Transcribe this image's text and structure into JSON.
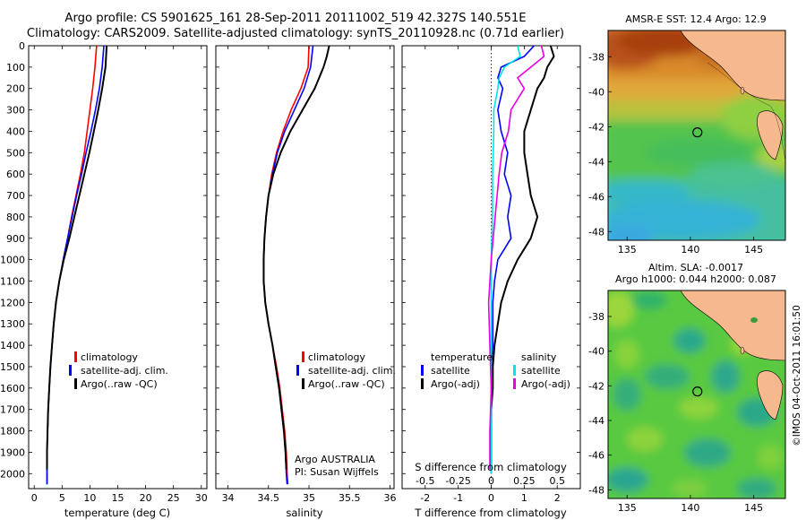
{
  "header": {
    "line1": "Argo profile: CS 5901625_161 28-Sep-2011 20111002_519 42.327S 140.551E",
    "line2": "Climatology: CARS2009. Satellite-adjusted climatology: synTS_20110928.nc (0.71d earlier)"
  },
  "sst_map": {
    "title": "AMSR-E SST: 12.4 Argo: 12.9"
  },
  "sla_map": {
    "title_line1": "Altim. SLA: -0.0017",
    "title_line2": "Argo h1000: 0.044 h2000: 0.087"
  },
  "side_stamp": "©IMOS 04-Oct-2011 16:01:50",
  "colors": {
    "climatology": "#ff0000",
    "satellite": "#0000ff",
    "argo": "#000000",
    "s_satellite": "#00e5e5",
    "s_argo": "#e600e6",
    "land": "#f6b98e"
  },
  "chart_data": [
    {
      "type": "line",
      "id": "temperature_profile",
      "xlabel": "temperature (deg C)",
      "xlim": [
        -1,
        31
      ],
      "xticks": [
        0,
        5,
        10,
        15,
        20,
        25,
        30
      ],
      "ylim": [
        2070,
        0
      ],
      "yticks": [
        0,
        100,
        200,
        300,
        400,
        500,
        600,
        700,
        800,
        900,
        1000,
        1100,
        1200,
        1300,
        1400,
        1500,
        1600,
        1700,
        1800,
        1900,
        2000
      ],
      "legend": {
        "placement": "lower-middle",
        "entries": [
          "climatology",
          "satellite-adj. clim.",
          "Argo(..raw -QC)"
        ]
      },
      "series": [
        {
          "name": "climatology",
          "color_key": "climatology",
          "depth": [
            0,
            100,
            200,
            300,
            400,
            500,
            600,
            700,
            800,
            900,
            1000,
            1100,
            1200,
            1300,
            1400,
            1500,
            1600,
            1700,
            1800,
            1900,
            2000,
            2050
          ],
          "values": [
            11.2,
            10.9,
            10.5,
            10.0,
            9.5,
            9.0,
            8.3,
            7.5,
            6.7,
            6.0,
            5.2,
            4.5,
            3.9,
            3.5,
            3.2,
            2.9,
            2.7,
            2.5,
            2.4,
            2.3,
            2.3,
            2.3
          ]
        },
        {
          "name": "satellite-adj. clim.",
          "color_key": "satellite",
          "depth": [
            0,
            100,
            200,
            300,
            400,
            500,
            600,
            700,
            800,
            900,
            1000,
            1100,
            1200,
            1300,
            1400,
            1500,
            1600,
            1700,
            1800,
            1900,
            2000,
            2050
          ],
          "values": [
            12.5,
            12.2,
            11.7,
            11.0,
            10.2,
            9.3,
            8.5,
            7.6,
            6.8,
            6.0,
            5.2,
            4.5,
            3.9,
            3.5,
            3.2,
            2.9,
            2.7,
            2.5,
            2.4,
            2.3,
            2.3,
            2.3
          ]
        },
        {
          "name": "Argo(..raw -QC)",
          "color_key": "argo",
          "depth": [
            0,
            100,
            200,
            300,
            400,
            500,
            600,
            700,
            800,
            900,
            1000,
            1100,
            1200,
            1300,
            1400,
            1500,
            1600,
            1700,
            1800,
            1900,
            1980
          ],
          "values": [
            13.0,
            12.8,
            12.2,
            11.5,
            10.7,
            9.9,
            9.0,
            8.1,
            7.2,
            6.3,
            5.3,
            4.5,
            3.9,
            3.5,
            3.2,
            2.9,
            2.7,
            2.5,
            2.4,
            2.3,
            2.3
          ]
        }
      ]
    },
    {
      "type": "line",
      "id": "salinity_profile",
      "xlabel": "salinity",
      "xlim": [
        33.85,
        36.05
      ],
      "xticks": [
        34,
        34.5,
        35,
        35.5,
        36
      ],
      "ylim": [
        2070,
        0
      ],
      "legend": {
        "placement": "lower-middle",
        "entries": [
          "climatology",
          "satellite-adj. clim.",
          "Argo(..raw -QC)"
        ]
      },
      "annotation": [
        "Argo AUSTRALIA",
        "PI: Susan Wijffels"
      ],
      "series": [
        {
          "name": "climatology",
          "color_key": "climatology",
          "depth": [
            0,
            100,
            200,
            300,
            400,
            500,
            600,
            700,
            800,
            900,
            1000,
            1100,
            1200,
            1300,
            1400,
            1500,
            1600,
            1700,
            1800,
            1900,
            2000,
            2050
          ],
          "values": [
            35.0,
            34.99,
            34.9,
            34.78,
            34.68,
            34.6,
            34.54,
            34.5,
            34.47,
            34.45,
            34.44,
            34.44,
            34.46,
            34.5,
            34.55,
            34.6,
            34.64,
            34.67,
            34.7,
            34.72,
            34.73,
            34.74
          ]
        },
        {
          "name": "satellite-adj. clim.",
          "color_key": "satellite",
          "depth": [
            0,
            100,
            200,
            300,
            400,
            500,
            600,
            700,
            800,
            900,
            1000,
            1100,
            1200,
            1300,
            1400,
            1500,
            1600,
            1700,
            1800,
            1900,
            2000,
            2050
          ],
          "values": [
            35.05,
            35.02,
            34.94,
            34.82,
            34.7,
            34.61,
            34.55,
            34.5,
            34.47,
            34.45,
            34.44,
            34.44,
            34.46,
            34.5,
            34.55,
            34.59,
            34.63,
            34.66,
            34.69,
            34.71,
            34.72,
            34.73
          ]
        },
        {
          "name": "Argo(..raw -QC)",
          "color_key": "argo",
          "depth": [
            0,
            50,
            100,
            200,
            300,
            400,
            500,
            600,
            700,
            800,
            900,
            1000,
            1100,
            1200,
            1300,
            1400,
            1500,
            1600,
            1700,
            1800,
            1900,
            1980
          ],
          "values": [
            35.25,
            35.22,
            35.18,
            35.07,
            34.92,
            34.77,
            34.65,
            34.56,
            34.5,
            34.47,
            34.45,
            34.44,
            34.44,
            34.46,
            34.5,
            34.55,
            34.59,
            34.63,
            34.66,
            34.69,
            34.71,
            34.72
          ]
        }
      ]
    },
    {
      "type": "line",
      "id": "difference_profile",
      "xlabel": "T difference from climatology",
      "xlabel_top": "S difference from climatology",
      "xlim": [
        -2.7,
        2.7
      ],
      "xticks": [
        -2,
        -1,
        0,
        1,
        2
      ],
      "xticks_s": [
        "-0.5",
        "-0.25",
        "0",
        "0.25",
        "0.5"
      ],
      "xticks_s_values": [
        -0.5,
        -0.25,
        0,
        0.25,
        0.5
      ],
      "ylim": [
        2070,
        0
      ],
      "legend": {
        "placement": "lower-middle",
        "temperature_header": "temperature",
        "salinity_header": "salinity",
        "entries": [
          "satellite",
          "Argo(-adj)",
          "satellite",
          "Argo(-adj)"
        ]
      },
      "series": [
        {
          "name": "satellite",
          "quantity": "temperature",
          "color_key": "satellite",
          "depth": [
            0,
            50,
            100,
            150,
            200,
            300,
            400,
            500,
            600,
            700,
            800,
            900,
            1000,
            1100,
            1200,
            1300,
            1400,
            1500,
            1600,
            1700,
            1800,
            1900,
            2000
          ],
          "values": [
            1.3,
            1.0,
            0.3,
            0.2,
            0.35,
            0.2,
            0.3,
            0.5,
            0.4,
            0.6,
            0.5,
            0.6,
            0.2,
            0.1,
            0.05,
            0.05,
            0.05,
            0.0,
            0.0,
            0.0,
            0.0,
            0.0,
            0.0
          ]
        },
        {
          "name": "Argo(-adj)",
          "quantity": "temperature",
          "color_key": "argo",
          "depth": [
            0,
            50,
            100,
            150,
            200,
            300,
            400,
            500,
            600,
            700,
            750,
            800,
            850,
            900,
            1000,
            1100,
            1200,
            1300,
            1400,
            1500,
            1600,
            1700,
            1800,
            1900,
            1980
          ],
          "values": [
            1.8,
            1.9,
            1.7,
            1.6,
            1.4,
            1.2,
            1.0,
            1.0,
            1.1,
            1.2,
            1.3,
            1.4,
            1.3,
            1.2,
            0.8,
            0.5,
            0.3,
            0.2,
            0.1,
            0.05,
            0.05,
            0.0,
            0.0,
            0.0,
            0.0
          ]
        },
        {
          "name": "satellite",
          "quantity": "salinity",
          "color_key": "s_satellite",
          "depth": [
            0,
            50,
            100,
            150,
            200,
            300,
            400,
            600,
            800,
            1000,
            1200,
            1400,
            1600,
            1800,
            2000
          ],
          "values": [
            0.2,
            0.22,
            0.1,
            0.06,
            0.05,
            0.02,
            0.02,
            0.01,
            0.01,
            0.0,
            0.0,
            0.0,
            0.0,
            0.0,
            0.0
          ]
        },
        {
          "name": "Argo(-adj)",
          "quantity": "salinity",
          "color_key": "s_argo",
          "depth": [
            0,
            50,
            100,
            150,
            200,
            300,
            400,
            500,
            600,
            800,
            1000,
            1200,
            1400,
            1600,
            1800,
            1980
          ],
          "values": [
            0.38,
            0.4,
            0.3,
            0.2,
            0.25,
            0.15,
            0.13,
            0.08,
            0.06,
            0.03,
            0.0,
            -0.02,
            -0.01,
            0.0,
            -0.01,
            -0.01
          ]
        }
      ]
    },
    {
      "type": "heatmap",
      "id": "sst_map",
      "xlim": [
        133.5,
        147.5
      ],
      "ylim": [
        -48.5,
        -36.5
      ],
      "xticks": [
        135,
        140,
        145
      ],
      "yticks": [
        -38,
        -40,
        -42,
        -44,
        -46,
        -48
      ],
      "marker": {
        "lon": 140.551,
        "lat": -42.327
      }
    },
    {
      "type": "heatmap",
      "id": "sla_map",
      "xlim": [
        133.5,
        147.5
      ],
      "ylim": [
        -48.5,
        -36.5
      ],
      "xticks": [
        135,
        140,
        145
      ],
      "yticks": [
        -38,
        -40,
        -42,
        -44,
        -46,
        -48
      ],
      "marker": {
        "lon": 140.551,
        "lat": -42.327
      }
    }
  ]
}
